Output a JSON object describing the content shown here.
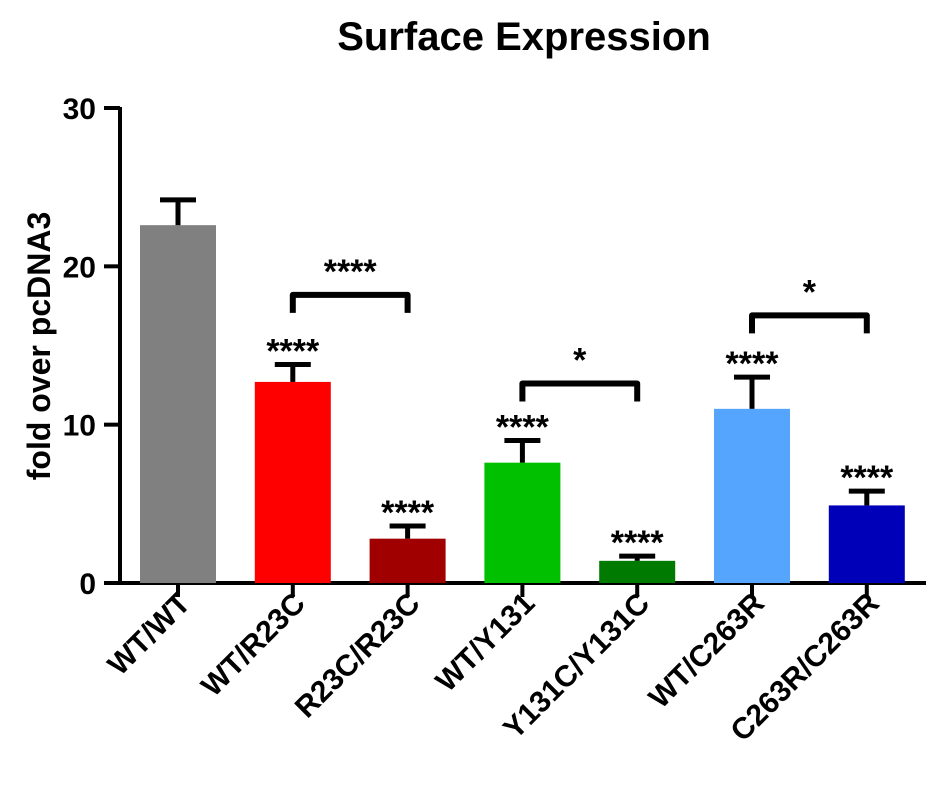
{
  "chart_data": {
    "type": "bar",
    "title": "Surface Expression",
    "xlabel": "",
    "ylabel": "fold over pcDNA3",
    "ylim": [
      0,
      30
    ],
    "yticks": [
      0,
      10,
      20,
      30
    ],
    "grid": false,
    "categories": [
      "WT/WT",
      "WT/R23C",
      "R23C/R23C",
      "WT/Y131",
      "Y131C/Y131C",
      "WT/C263R",
      "C263R/C263R"
    ],
    "values": [
      22.6,
      12.7,
      2.8,
      7.6,
      1.4,
      11.0,
      4.9
    ],
    "errors": [
      1.6,
      1.1,
      0.8,
      1.4,
      0.3,
      2.0,
      0.9
    ],
    "colors": [
      "#808080",
      "#ff0000",
      "#a00000",
      "#00c000",
      "#007a00",
      "#55a5ff",
      "#0000b8"
    ],
    "bar_significance": [
      "",
      "****",
      "****",
      "****",
      "****",
      "****",
      "****"
    ],
    "brackets": [
      {
        "from": 1,
        "to": 2,
        "top": 18.2,
        "label": "****"
      },
      {
        "from": 3,
        "to": 4,
        "top": 12.6,
        "label": "*"
      },
      {
        "from": 5,
        "to": 6,
        "top": 16.9,
        "label": "*"
      }
    ]
  }
}
